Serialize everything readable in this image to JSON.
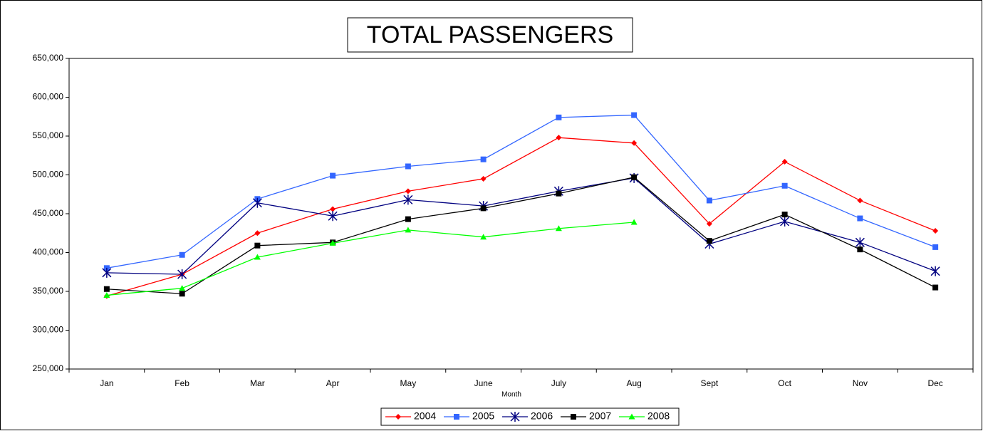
{
  "chart_data": {
    "type": "line",
    "title": "TOTAL PASSENGERS",
    "x_label": "Month",
    "categories": [
      "Jan",
      "Feb",
      "Mar",
      "Apr",
      "May",
      "June",
      "July",
      "Aug",
      "Sept",
      "Oct",
      "Nov",
      "Dec"
    ],
    "ylim": [
      250000,
      650000
    ],
    "yticks": [
      {
        "value": 250000,
        "label": "250,000"
      },
      {
        "value": 300000,
        "label": "300,000"
      },
      {
        "value": 350000,
        "label": "350,000"
      },
      {
        "value": 400000,
        "label": "400,000"
      },
      {
        "value": 450000,
        "label": "450,000"
      },
      {
        "value": 500000,
        "label": "500,000"
      },
      {
        "value": 550000,
        "label": "550,000"
      },
      {
        "value": 600000,
        "label": "600,000"
      },
      {
        "value": 650000,
        "label": "650,000"
      }
    ],
    "grid": false,
    "legend": "bottom",
    "series": [
      {
        "name": "2004",
        "color": "#ff0000",
        "marker": "diamond",
        "values": [
          344000,
          372000,
          425000,
          456000,
          479000,
          495000,
          548000,
          541000,
          437000,
          517000,
          467000,
          428000
        ]
      },
      {
        "name": "2005",
        "color": "#3366ff",
        "marker": "square",
        "values": [
          380000,
          397000,
          469000,
          499000,
          511000,
          520000,
          574000,
          577000,
          467000,
          486000,
          444000,
          407000
        ]
      },
      {
        "name": "2006",
        "color": "#000080",
        "marker": "star",
        "values": [
          374000,
          372000,
          464000,
          447000,
          468000,
          460000,
          479000,
          496000,
          411000,
          440000,
          413000,
          376000
        ]
      },
      {
        "name": "2007",
        "color": "#000000",
        "marker": "square",
        "values": [
          353000,
          347000,
          409000,
          413000,
          443000,
          457000,
          476000,
          497000,
          415000,
          449000,
          404000,
          355000
        ]
      },
      {
        "name": "2008",
        "color": "#00ff00",
        "marker": "triangle",
        "values": [
          345000,
          354000,
          394000,
          412000,
          429000,
          420000,
          431000,
          439000,
          null,
          null,
          null,
          null
        ]
      }
    ]
  }
}
